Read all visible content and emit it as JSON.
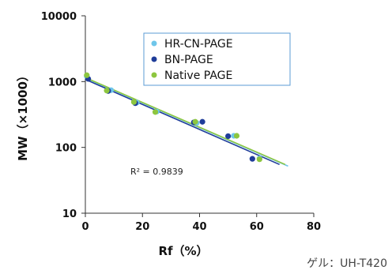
{
  "chart_data": {
    "type": "scatter",
    "title": "",
    "xlabel": "Rf（%）",
    "ylabel": "MW（×1000）",
    "xlim": [
      0,
      80
    ],
    "ylim": [
      10,
      10000
    ],
    "yscale": "log",
    "x_ticks": [
      "0",
      "20",
      "40",
      "60",
      "80"
    ],
    "y_ticks": [
      "10",
      "100",
      "1000",
      "10000"
    ],
    "grid": false,
    "legend_position": "top-right",
    "series": [
      {
        "name": "HR-CN-PAGE",
        "color": "#6fc6ea",
        "x": [
          0.5,
          9,
          18,
          25,
          39,
          52,
          61
        ],
        "y": [
          1200,
          740,
          480,
          350,
          235,
          150,
          68
        ],
        "trend": {
          "x": [
            0,
            71
          ],
          "y": [
            1130,
            52
          ]
        }
      },
      {
        "name": "BN-PAGE",
        "color": "#1f3d99",
        "x": [
          1,
          8,
          17.5,
          38,
          41,
          50,
          58.5
        ],
        "y": [
          1100,
          720,
          470,
          240,
          245,
          148,
          67
        ],
        "trend": {
          "x": [
            0,
            68
          ],
          "y": [
            1080,
            55
          ]
        }
      },
      {
        "name": "Native PAGE",
        "color": "#8dc63f",
        "x": [
          0.5,
          7.5,
          17,
          24.5,
          38.5,
          53,
          61
        ],
        "y": [
          1250,
          730,
          490,
          345,
          245,
          150,
          66
        ],
        "trend": {
          "x": [
            0,
            70
          ],
          "y": [
            1150,
            55
          ]
        }
      }
    ],
    "annotations": [
      "R² = 0.9839"
    ]
  },
  "caption": "ゲル：UH-T420"
}
